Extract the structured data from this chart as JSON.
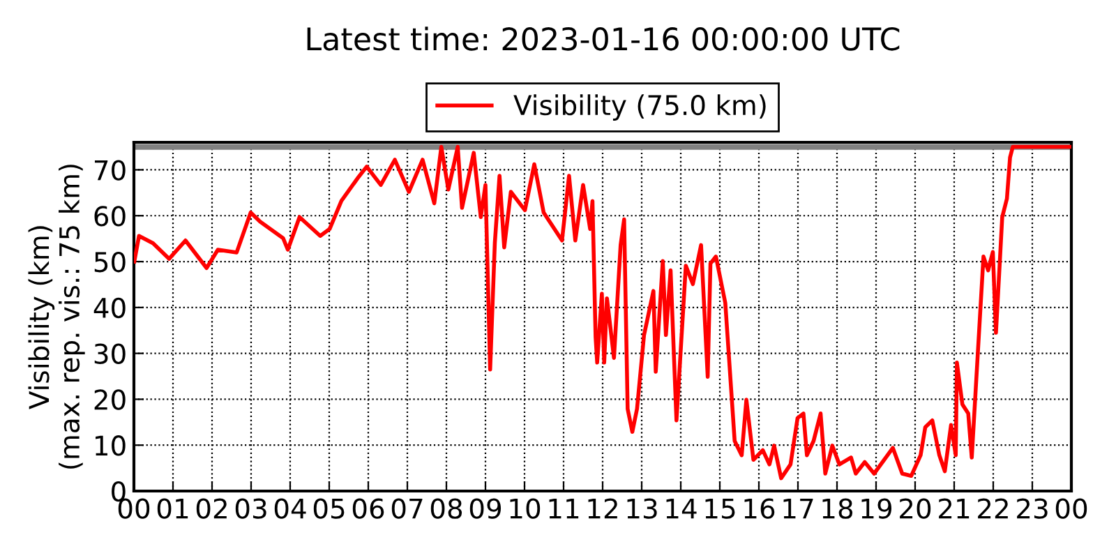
{
  "chart_data": {
    "type": "line",
    "title": "Latest time: 2023-01-16 00:00:00 UTC",
    "ylabel": "Visibility (km)\n(max. rep. vis.: 75 km)",
    "x": [
      0.01,
      0.13,
      0.49,
      0.9,
      1.32,
      1.86,
      2.15,
      2.63,
      2.99,
      3.23,
      3.82,
      3.94,
      4.24,
      4.77,
      5.01,
      5.31,
      5.73,
      5.96,
      6.32,
      6.68,
      7.04,
      7.39,
      7.69,
      7.87,
      8.05,
      8.29,
      8.4,
      8.7,
      8.88,
      9.0,
      9.12,
      9.24,
      9.36,
      9.48,
      9.65,
      10.01,
      10.25,
      10.49,
      10.96,
      11.14,
      11.3,
      11.5,
      11.68,
      11.74,
      11.82,
      11.86,
      11.98,
      12.04,
      12.11,
      12.29,
      12.46,
      12.55,
      12.64,
      12.76,
      12.88,
      13.06,
      13.3,
      13.36,
      13.54,
      13.62,
      13.74,
      13.89,
      14.13,
      14.31,
      14.52,
      14.69,
      14.76,
      14.9,
      15.14,
      15.38,
      15.56,
      15.68,
      15.86,
      16.1,
      16.27,
      16.39,
      16.57,
      16.81,
      16.99,
      17.14,
      17.23,
      17.4,
      17.58,
      17.7,
      17.88,
      18.06,
      18.36,
      18.48,
      18.71,
      18.95,
      19.43,
      19.67,
      19.9,
      20.14,
      20.26,
      20.44,
      20.62,
      20.76,
      20.92,
      21.04,
      21.07,
      21.21,
      21.36,
      21.45,
      21.57,
      21.75,
      21.87,
      21.99,
      22.07,
      22.23,
      22.35,
      22.43,
      22.5,
      24
    ],
    "series": [
      {
        "name": "Visibility (75.0 km)",
        "color": "#ff0000",
        "values": [
          50,
          55.6,
          54,
          50.6,
          54.6,
          48.6,
          52.6,
          52,
          60.7,
          58.7,
          55.1,
          52.6,
          59.7,
          55.6,
          57.1,
          63.2,
          68.2,
          70.7,
          66.7,
          72.2,
          65.2,
          72.2,
          62.7,
          75,
          65.7,
          75,
          61.7,
          73.7,
          59.7,
          66.7,
          26.5,
          54.1,
          68.7,
          53.1,
          65.2,
          61.2,
          71.2,
          60.7,
          54.6,
          68.7,
          54.6,
          66.7,
          57.1,
          63.2,
          33.5,
          28,
          43,
          28,
          42,
          29,
          53.6,
          59.2,
          17.9,
          12.9,
          17.9,
          34,
          43.6,
          26,
          50.1,
          34,
          48.1,
          15.4,
          49.1,
          45.1,
          53.6,
          24.9,
          49.6,
          51.1,
          41,
          10.9,
          7.8,
          19.9,
          6.8,
          8.9,
          5.8,
          9.9,
          2.8,
          5.8,
          15.9,
          16.9,
          7.8,
          10.9,
          16.9,
          3.8,
          9.9,
          5.8,
          7.3,
          3.8,
          6.3,
          3.8,
          9.4,
          3.8,
          3.3,
          7.8,
          13.9,
          15.4,
          7.8,
          4.3,
          14.4,
          7.8,
          28,
          18.9,
          16.9,
          7.3,
          24.9,
          51.1,
          48.1,
          52.1,
          34.5,
          59.7,
          63.7,
          72.7,
          75,
          75
        ]
      }
    ],
    "xlim": [
      0,
      24
    ],
    "xticks": [
      {
        "value": 0,
        "label": "00"
      },
      {
        "value": 1,
        "label": "01"
      },
      {
        "value": 2,
        "label": "02"
      },
      {
        "value": 3,
        "label": "03"
      },
      {
        "value": 4,
        "label": "04"
      },
      {
        "value": 5,
        "label": "05"
      },
      {
        "value": 6,
        "label": "06"
      },
      {
        "value": 7,
        "label": "07"
      },
      {
        "value": 8,
        "label": "08"
      },
      {
        "value": 9,
        "label": "09"
      },
      {
        "value": 10,
        "label": "10"
      },
      {
        "value": 11,
        "label": "11"
      },
      {
        "value": 12,
        "label": "12"
      },
      {
        "value": 13,
        "label": "13"
      },
      {
        "value": 14,
        "label": "14"
      },
      {
        "value": 15,
        "label": "15"
      },
      {
        "value": 16,
        "label": "16"
      },
      {
        "value": 17,
        "label": "17"
      },
      {
        "value": 18,
        "label": "18"
      },
      {
        "value": 19,
        "label": "19"
      },
      {
        "value": 20,
        "label": "20"
      },
      {
        "value": 21,
        "label": "21"
      },
      {
        "value": 22,
        "label": "22"
      },
      {
        "value": 23,
        "label": "23"
      },
      {
        "value": 24,
        "label": "00"
      }
    ],
    "ylim": [
      0,
      76
    ],
    "yticks": [
      0,
      10,
      20,
      30,
      40,
      50,
      60,
      70
    ],
    "ref_lines": [
      {
        "axis": "y",
        "value": 75,
        "color": "#808080"
      }
    ],
    "grid": true,
    "legend": "top",
    "line_style": "solid",
    "marker": "none"
  }
}
